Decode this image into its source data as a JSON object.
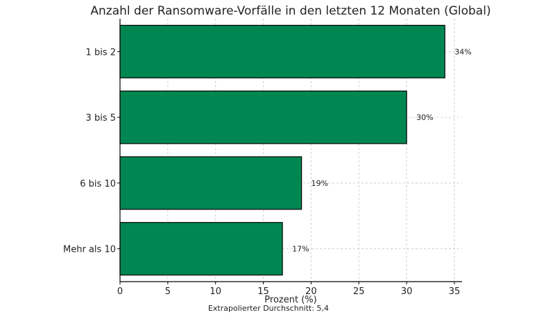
{
  "chart_data": {
    "type": "bar",
    "orientation": "horizontal",
    "title": "Anzahl der Ransomware-Vorfälle in den letzten 12 Monaten (Global)",
    "categories": [
      "1 bis 2",
      "3 bis 5",
      "6 bis 10",
      "Mehr als 10"
    ],
    "values": [
      34,
      30,
      19,
      17
    ],
    "data_labels": [
      "34%",
      "30%",
      "19%",
      "17%"
    ],
    "xlabel": "Prozent (%)",
    "ylabel": "",
    "xlim": [
      0,
      35.8
    ],
    "xticks": [
      0,
      5,
      10,
      15,
      20,
      25,
      30,
      35
    ],
    "grid": true,
    "bar_color": "#008751",
    "note": "Extrapolierter Durchschnitt: 5,4"
  }
}
